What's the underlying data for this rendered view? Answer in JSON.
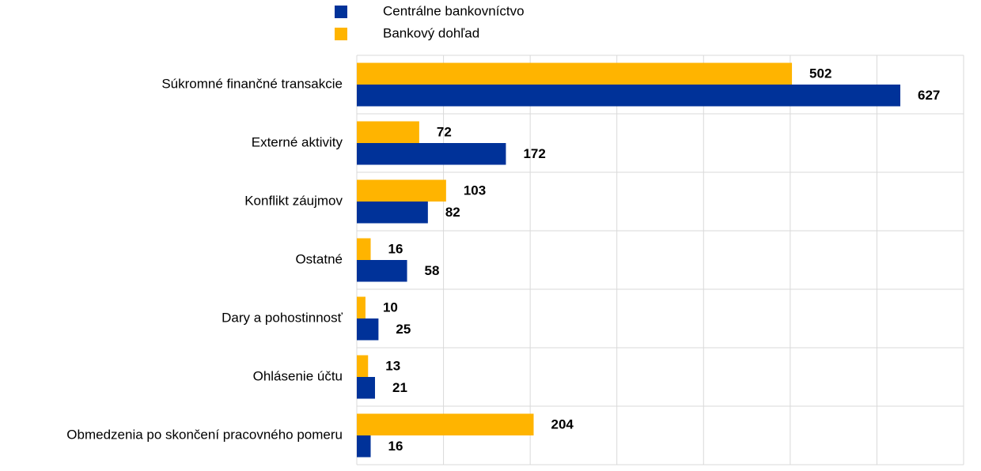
{
  "chart_data": {
    "type": "hbar",
    "categories": [
      "Súkromné finančné transakcie",
      "Externé aktivity",
      "Konflikt záujmov",
      "Ostatné",
      "Dary a pohostinnosť",
      "Ohlásenie účtu",
      "Obmedzenia po skončení pracovného pomeru"
    ],
    "series": [
      {
        "name": "Centrálne bankovníctvo",
        "color": "#003299",
        "values": [
          627,
          172,
          82,
          58,
          25,
          21,
          16
        ]
      },
      {
        "name": "Bankový dohľad",
        "color": "#ffb400",
        "values": [
          502,
          72,
          103,
          16,
          10,
          13,
          204
        ]
      }
    ],
    "xlim": [
      0,
      700
    ],
    "xticks": [
      0,
      100,
      200,
      300,
      400,
      500,
      600,
      700
    ],
    "grid": true
  }
}
